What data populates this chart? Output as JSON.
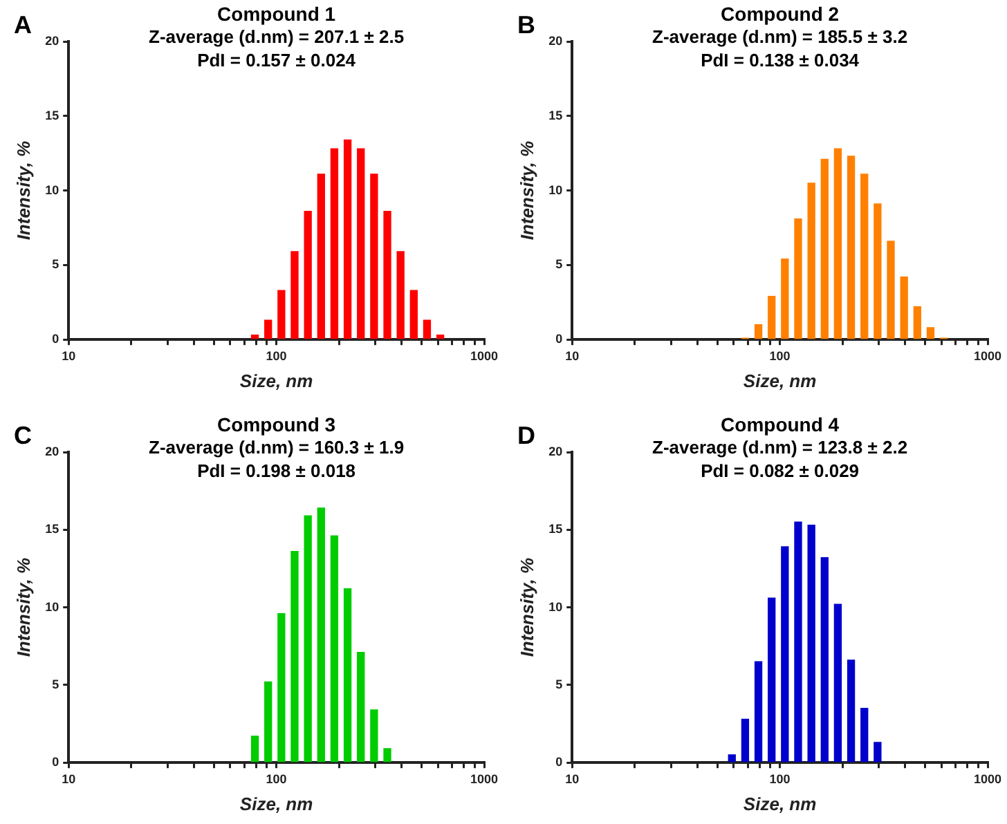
{
  "chart_data": [
    {
      "type": "bar",
      "title": "Compound 1",
      "subtitle": "Z-average (d.nm) = 207.1 ± 2.5\nPdI = 0.157 ± 0.024",
      "annotations": [
        "A"
      ],
      "xlabel": "Size, nm",
      "ylabel": "Intensity, %",
      "log": "x",
      "color": "#ff0000",
      "x": [
        78.82,
        91.28,
        105.7,
        122.4,
        141.8,
        164.2,
        190.1,
        220.2,
        255.0,
        295.3,
        342.0,
        396.1,
        458.7,
        531.2,
        615.1
      ],
      "values": [
        0.3,
        1.3,
        3.3,
        5.9,
        8.6,
        11.1,
        12.8,
        13.4,
        12.8,
        11.1,
        8.6,
        5.9,
        3.3,
        1.3,
        0.3
      ],
      "xlim": [
        10,
        1000
      ],
      "xticks": [
        10,
        {
          "value": 20,
          "label": null
        },
        {
          "value": 30,
          "label": null
        },
        {
          "value": 40,
          "label": null
        },
        {
          "value": 50,
          "label": null
        },
        {
          "value": 60,
          "label": null
        },
        {
          "value": 70,
          "label": null
        },
        {
          "value": 80,
          "label": null
        },
        {
          "value": 90,
          "label": null
        },
        100,
        {
          "value": 200,
          "label": null
        },
        {
          "value": 300,
          "label": null
        },
        {
          "value": 400,
          "label": null
        },
        {
          "value": 500,
          "label": null
        },
        {
          "value": 600,
          "label": null
        },
        {
          "value": 700,
          "label": null
        },
        {
          "value": 800,
          "label": null
        },
        {
          "value": 900,
          "label": null
        },
        1000
      ],
      "ylim": [
        0,
        20
      ],
      "yticks": [
        0,
        5,
        10,
        15,
        20
      ]
    },
    {
      "type": "bar",
      "title": "Compound 2",
      "subtitle": "Z-average (d.nm) = 185.5 ± 3.2\nPdI = 0.138 ± 0.034",
      "annotations": [
        "B"
      ],
      "xlabel": "Size, nm",
      "ylabel": "Intensity, %",
      "log": "x",
      "color": "#ff8000",
      "x": [
        68.06,
        78.82,
        91.28,
        105.7,
        122.4,
        141.8,
        164.2,
        190.1,
        220.2,
        255.0,
        295.3,
        342.0,
        396.1,
        458.7,
        531.2,
        615.1
      ],
      "values": [
        0.1,
        1.0,
        2.9,
        5.4,
        8.1,
        10.5,
        12.1,
        12.8,
        12.3,
        11.1,
        9.1,
        6.6,
        4.2,
        2.2,
        0.8,
        0.1
      ],
      "xlim": [
        10,
        1000
      ],
      "xticks": [
        10,
        {
          "value": 20,
          "label": null
        },
        {
          "value": 30,
          "label": null
        },
        {
          "value": 40,
          "label": null
        },
        {
          "value": 50,
          "label": null
        },
        {
          "value": 60,
          "label": null
        },
        {
          "value": 70,
          "label": null
        },
        {
          "value": 80,
          "label": null
        },
        {
          "value": 90,
          "label": null
        },
        100,
        {
          "value": 200,
          "label": null
        },
        {
          "value": 300,
          "label": null
        },
        {
          "value": 400,
          "label": null
        },
        {
          "value": 500,
          "label": null
        },
        {
          "value": 600,
          "label": null
        },
        {
          "value": 700,
          "label": null
        },
        {
          "value": 800,
          "label": null
        },
        {
          "value": 900,
          "label": null
        },
        1000
      ],
      "ylim": [
        0,
        20
      ],
      "yticks": [
        0,
        5,
        10,
        15,
        20
      ]
    },
    {
      "type": "bar",
      "title": "Compound 3",
      "subtitle": "Z-average (d.nm) = 160.3 ± 1.9\nPdI = 0.198 ± 0.018",
      "annotations": [
        "C"
      ],
      "xlabel": "Size, nm",
      "ylabel": "Intensity, %",
      "log": "x",
      "color": "#00cc00",
      "x": [
        78.82,
        91.28,
        105.7,
        122.4,
        141.8,
        164.2,
        190.1,
        220.2,
        255.0,
        295.3,
        342.0
      ],
      "values": [
        1.7,
        5.2,
        9.6,
        13.6,
        15.9,
        16.4,
        14.6,
        11.2,
        7.1,
        3.4,
        0.9
      ],
      "xlim": [
        10,
        1000
      ],
      "xticks": [
        10,
        {
          "value": 20,
          "label": null
        },
        {
          "value": 30,
          "label": null
        },
        {
          "value": 40,
          "label": null
        },
        {
          "value": 50,
          "label": null
        },
        {
          "value": 60,
          "label": null
        },
        {
          "value": 70,
          "label": null
        },
        {
          "value": 80,
          "label": null
        },
        {
          "value": 90,
          "label": null
        },
        100,
        {
          "value": 200,
          "label": null
        },
        {
          "value": 300,
          "label": null
        },
        {
          "value": 400,
          "label": null
        },
        {
          "value": 500,
          "label": null
        },
        {
          "value": 600,
          "label": null
        },
        {
          "value": 700,
          "label": null
        },
        {
          "value": 800,
          "label": null
        },
        {
          "value": 900,
          "label": null
        },
        1000
      ],
      "ylim": [
        0,
        20
      ],
      "yticks": [
        0,
        5,
        10,
        15,
        20
      ]
    },
    {
      "type": "bar",
      "title": "Compound 4",
      "subtitle": "Z-average (d.nm) = 123.8 ± 2.2\nPdI = 0.082 ± 0.029",
      "annotations": [
        "D"
      ],
      "xlabel": "Size, nm",
      "ylabel": "Intensity, %",
      "log": "x",
      "color": "#0000cc",
      "x": [
        58.77,
        68.06,
        78.82,
        91.28,
        105.7,
        122.4,
        141.8,
        164.2,
        190.1,
        220.2,
        255.0,
        295.3
      ],
      "values": [
        0.5,
        2.8,
        6.5,
        10.6,
        13.9,
        15.5,
        15.3,
        13.2,
        10.2,
        6.6,
        3.5,
        1.3
      ],
      "xlim": [
        10,
        1000
      ],
      "xticks": [
        10,
        {
          "value": 20,
          "label": null
        },
        {
          "value": 30,
          "label": null
        },
        {
          "value": 40,
          "label": null
        },
        {
          "value": 50,
          "label": null
        },
        {
          "value": 60,
          "label": null
        },
        {
          "value": 70,
          "label": null
        },
        {
          "value": 80,
          "label": null
        },
        {
          "value": 90,
          "label": null
        },
        100,
        {
          "value": 200,
          "label": null
        },
        {
          "value": 300,
          "label": null
        },
        {
          "value": 400,
          "label": null
        },
        {
          "value": 500,
          "label": null
        },
        {
          "value": 600,
          "label": null
        },
        {
          "value": 700,
          "label": null
        },
        {
          "value": 800,
          "label": null
        },
        {
          "value": 900,
          "label": null
        },
        1000
      ],
      "ylim": [
        0,
        20
      ],
      "yticks": [
        0,
        5,
        10,
        15,
        20
      ]
    }
  ]
}
